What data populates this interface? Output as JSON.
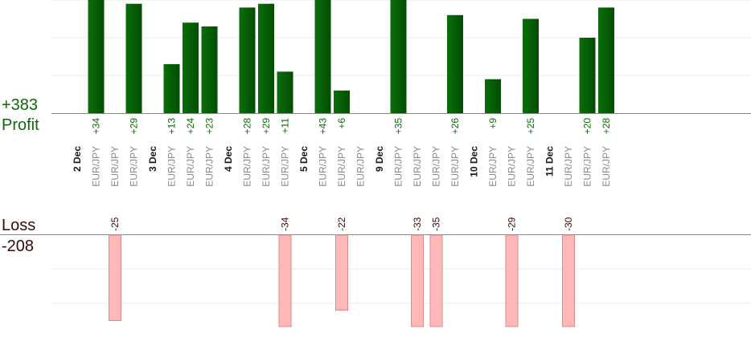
{
  "colors": {
    "profit_bar": "#0a6e0a",
    "profit_bar_dark": "#024d02",
    "profit_text": "#0b6b0b",
    "loss_bar": "#ffb8b8",
    "loss_bar_edge": "#e08888",
    "loss_text": "#3a0a0a",
    "category_text": "#8a8a8a",
    "date_text": "#1a1a1a",
    "grid": "#ebebeb",
    "axis": "#888888"
  },
  "summary": {
    "profit_total": "+383",
    "profit_label": "Profit",
    "loss_label": "Loss",
    "loss_total": "-208"
  },
  "chart_data": {
    "type": "bar",
    "title": "",
    "xlabel": "",
    "ylabel": "",
    "date_groups": [
      "2 Dec",
      "3 Dec",
      "4 Dec",
      "5 Dec",
      "9 Dec",
      "10 Dec",
      "11 Dec"
    ],
    "categories": [
      "2 Dec",
      "EUR/JPY",
      "EUR/JPY",
      "EUR/JPY",
      "3 Dec",
      "EUR/JPY",
      "EUR/JPY",
      "EUR/JPY",
      "4 Dec",
      "EUR/JPY",
      "EUR/JPY",
      "EUR/JPY",
      "5 Dec",
      "EUR/JPY",
      "EUR/JPY",
      "EUR/JPY",
      "9 Dec",
      "EUR/JPY",
      "EUR/JPY",
      "EUR/JPY",
      "EUR/JPY",
      "10 Dec",
      "EUR/JPY",
      "EUR/JPY",
      "EUR/JPY",
      "11 Dec",
      "EUR/JPY",
      "EUR/JPY",
      "EUR/JPY"
    ],
    "date_slots": [
      0,
      4,
      8,
      12,
      16,
      21,
      25
    ],
    "series": [
      {
        "name": "Profit",
        "values": [
          null,
          34,
          0,
          29,
          null,
          13,
          24,
          23,
          null,
          28,
          29,
          11,
          null,
          43,
          6,
          0,
          null,
          35,
          0,
          0,
          26,
          null,
          9,
          0,
          25,
          null,
          0,
          20,
          28
        ],
        "labels": [
          null,
          "+34",
          null,
          "+29",
          null,
          "+13",
          "+24",
          "+23",
          null,
          "+28",
          "+29",
          "+11",
          null,
          "+43",
          "+6",
          null,
          null,
          "+35",
          null,
          null,
          "+26",
          null,
          "+9",
          null,
          "+25",
          null,
          null,
          "+20",
          "+28"
        ]
      },
      {
        "name": "Loss",
        "values": [
          null,
          0,
          -25,
          0,
          null,
          0,
          0,
          0,
          null,
          0,
          0,
          -34,
          null,
          0,
          -22,
          0,
          null,
          0,
          -33,
          -35,
          0,
          null,
          0,
          -29,
          0,
          null,
          -30,
          0,
          0
        ],
        "labels": [
          null,
          null,
          "-25",
          null,
          null,
          null,
          null,
          null,
          null,
          null,
          null,
          "-34",
          null,
          null,
          "-22",
          null,
          null,
          null,
          "-33",
          "-35",
          null,
          null,
          null,
          "-29",
          null,
          null,
          "-30",
          null,
          null
        ]
      }
    ],
    "profit_axis": {
      "range": [
        0,
        30
      ],
      "gridlines": [
        10,
        20,
        30
      ]
    },
    "loss_axis": {
      "range": [
        -25,
        0
      ],
      "gridlines": [
        -10,
        -20
      ]
    },
    "grid": true,
    "legend": "none"
  }
}
